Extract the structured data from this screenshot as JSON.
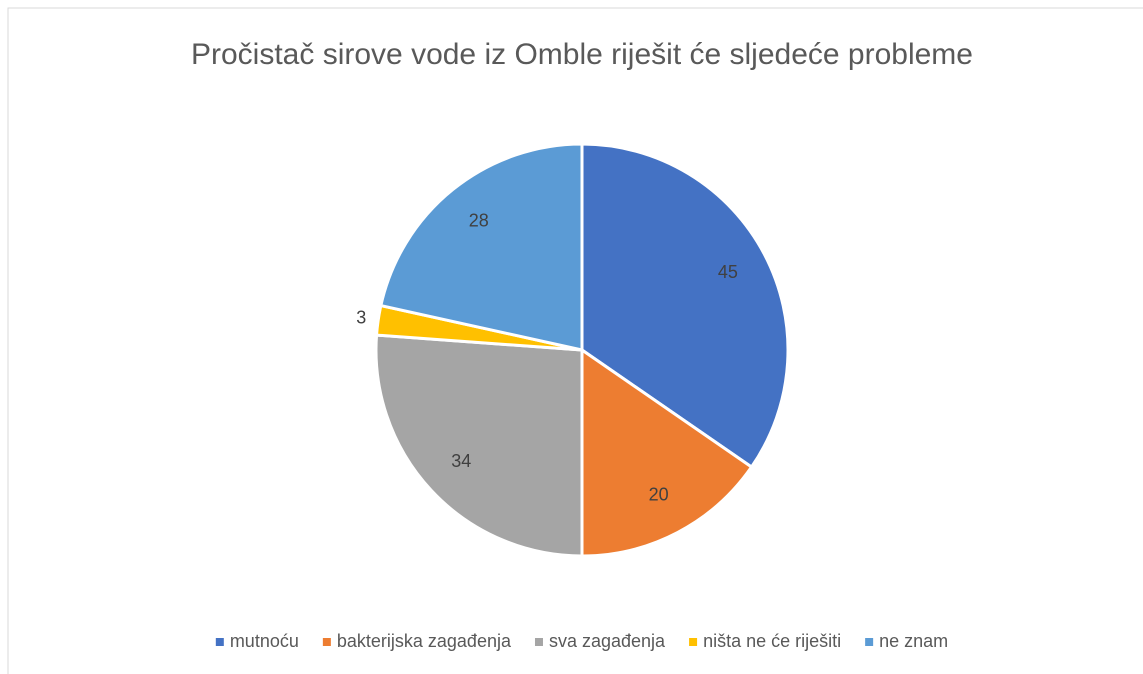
{
  "chart_data": {
    "type": "pie",
    "title": "Pročistač sirove vode iz Omble riješit će sljedeće probleme",
    "categories": [
      "mutnoću",
      "bakterijska zagađenja",
      "sva zagađenja",
      "ništa ne će riješiti",
      "ne znam"
    ],
    "values": [
      45,
      20,
      34,
      3,
      28
    ],
    "colors": [
      "#4472c4",
      "#ed7d31",
      "#a5a5a5",
      "#ffc000",
      "#5b9bd5"
    ],
    "legend": "bottom"
  }
}
